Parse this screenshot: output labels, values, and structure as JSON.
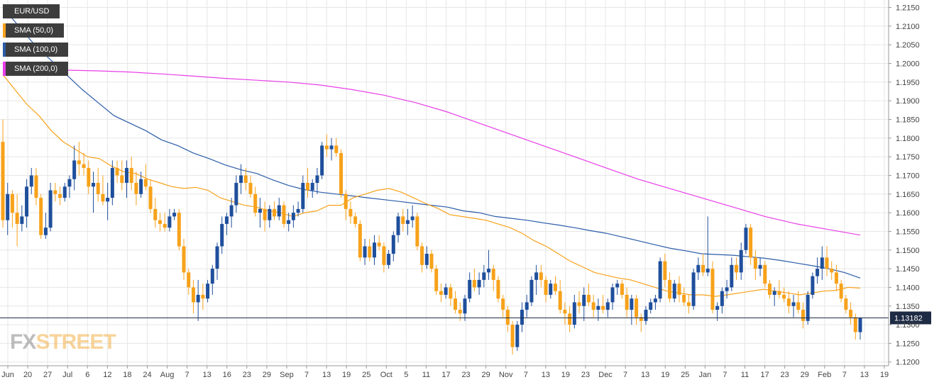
{
  "chart_data": {
    "type": "candlestick",
    "symbol": "EUR/USD",
    "legend": [
      {
        "label": "EUR/USD",
        "color": "#3d3d3d"
      },
      {
        "label": "SMA (50,0)",
        "color": "#f7a21b"
      },
      {
        "label": "SMA (100,0)",
        "color": "#2b5ca8"
      },
      {
        "label": "SMA (200,0)",
        "color": "#e83de8"
      }
    ],
    "ylim": [
      1.119,
      1.217
    ],
    "yticks": [
      "1.2150",
      "1.2100",
      "1.2050",
      "1.2000",
      "1.1950",
      "1.1900",
      "1.1850",
      "1.1800",
      "1.1750",
      "1.1700",
      "1.1650",
      "1.1600",
      "1.1550",
      "1.1500",
      "1.1450",
      "1.1400",
      "1.1350",
      "1.1300",
      "1.1250",
      "1.1200"
    ],
    "xticks": [
      "Jun",
      "20",
      "27",
      "Jul",
      "6",
      "12",
      "18",
      "24",
      "Aug",
      "7",
      "13",
      "16",
      "23",
      "29",
      "Sep",
      "7",
      "13",
      "19",
      "25",
      "Oct",
      "5",
      "11",
      "17",
      "23",
      "29",
      "Nov",
      "7",
      "13",
      "19",
      "23",
      "Dec",
      "7",
      "13",
      "19",
      "25",
      "Jan",
      "7",
      "11",
      "17",
      "23",
      "29",
      "Feb",
      "7",
      "13",
      "19"
    ],
    "current_price": "1.13182",
    "current_value": 1.13182,
    "up_color": "#1f4f9c",
    "down_color": "#f7a21b",
    "candles": [
      [
        1.179,
        1.185,
        1.156,
        1.158
      ],
      [
        1.158,
        1.168,
        1.154,
        1.165
      ],
      [
        1.165,
        1.166,
        1.156,
        1.16
      ],
      [
        1.16,
        1.165,
        1.151,
        1.157
      ],
      [
        1.157,
        1.162,
        1.155,
        1.159
      ],
      [
        1.159,
        1.169,
        1.156,
        1.167
      ],
      [
        1.167,
        1.172,
        1.165,
        1.17
      ],
      [
        1.17,
        1.172,
        1.162,
        1.164
      ],
      [
        1.164,
        1.165,
        1.153,
        1.154
      ],
      [
        1.154,
        1.16,
        1.153,
        1.156
      ],
      [
        1.156,
        1.168,
        1.155,
        1.166
      ],
      [
        1.166,
        1.168,
        1.163,
        1.165
      ],
      [
        1.165,
        1.167,
        1.162,
        1.164
      ],
      [
        1.164,
        1.168,
        1.163,
        1.167
      ],
      [
        1.167,
        1.17,
        1.164,
        1.169
      ],
      [
        1.169,
        1.178,
        1.166,
        1.174
      ],
      [
        1.174,
        1.179,
        1.17,
        1.173
      ],
      [
        1.173,
        1.176,
        1.17,
        1.172
      ],
      [
        1.172,
        1.174,
        1.165,
        1.167
      ],
      [
        1.167,
        1.171,
        1.16,
        1.168
      ],
      [
        1.168,
        1.172,
        1.163,
        1.165
      ],
      [
        1.165,
        1.17,
        1.162,
        1.163
      ],
      [
        1.163,
        1.168,
        1.158,
        1.164
      ],
      [
        1.164,
        1.174,
        1.162,
        1.172
      ],
      [
        1.172,
        1.174,
        1.168,
        1.17
      ],
      [
        1.17,
        1.174,
        1.166,
        1.168
      ],
      [
        1.168,
        1.174,
        1.164,
        1.172
      ],
      [
        1.172,
        1.175,
        1.166,
        1.168
      ],
      [
        1.168,
        1.171,
        1.162,
        1.165
      ],
      [
        1.165,
        1.171,
        1.164,
        1.169
      ],
      [
        1.169,
        1.173,
        1.166,
        1.167
      ],
      [
        1.167,
        1.169,
        1.16,
        1.161
      ],
      [
        1.161,
        1.164,
        1.156,
        1.158
      ],
      [
        1.158,
        1.16,
        1.155,
        1.157
      ],
      [
        1.157,
        1.16,
        1.155,
        1.156
      ],
      [
        1.156,
        1.161,
        1.155,
        1.159
      ],
      [
        1.159,
        1.161,
        1.158,
        1.16
      ],
      [
        1.16,
        1.161,
        1.15,
        1.151
      ],
      [
        1.151,
        1.153,
        1.142,
        1.144
      ],
      [
        1.144,
        1.145,
        1.138,
        1.14
      ],
      [
        1.14,
        1.142,
        1.133,
        1.136
      ],
      [
        1.136,
        1.142,
        1.131,
        1.138
      ],
      [
        1.138,
        1.141,
        1.134,
        1.137
      ],
      [
        1.137,
        1.142,
        1.136,
        1.141
      ],
      [
        1.141,
        1.146,
        1.138,
        1.145
      ],
      [
        1.145,
        1.152,
        1.142,
        1.151
      ],
      [
        1.151,
        1.159,
        1.149,
        1.157
      ],
      [
        1.157,
        1.16,
        1.154,
        1.159
      ],
      [
        1.159,
        1.164,
        1.156,
        1.162
      ],
      [
        1.162,
        1.17,
        1.16,
        1.168
      ],
      [
        1.168,
        1.173,
        1.165,
        1.17
      ],
      [
        1.17,
        1.172,
        1.166,
        1.168
      ],
      [
        1.168,
        1.17,
        1.164,
        1.165
      ],
      [
        1.165,
        1.167,
        1.159,
        1.16
      ],
      [
        1.16,
        1.164,
        1.156,
        1.161
      ],
      [
        1.161,
        1.163,
        1.155,
        1.158
      ],
      [
        1.158,
        1.162,
        1.156,
        1.161
      ],
      [
        1.161,
        1.163,
        1.158,
        1.159
      ],
      [
        1.159,
        1.164,
        1.158,
        1.162
      ],
      [
        1.162,
        1.163,
        1.156,
        1.157
      ],
      [
        1.157,
        1.16,
        1.155,
        1.158
      ],
      [
        1.158,
        1.162,
        1.156,
        1.16
      ],
      [
        1.16,
        1.163,
        1.159,
        1.161
      ],
      [
        1.161,
        1.17,
        1.16,
        1.168
      ],
      [
        1.168,
        1.172,
        1.164,
        1.166
      ],
      [
        1.166,
        1.169,
        1.164,
        1.168
      ],
      [
        1.168,
        1.172,
        1.165,
        1.17
      ],
      [
        1.17,
        1.179,
        1.169,
        1.178
      ],
      [
        1.178,
        1.181,
        1.175,
        1.177
      ],
      [
        1.177,
        1.18,
        1.174,
        1.178
      ],
      [
        1.178,
        1.18,
        1.175,
        1.176
      ],
      [
        1.176,
        1.177,
        1.164,
        1.165
      ],
      [
        1.165,
        1.166,
        1.158,
        1.161
      ],
      [
        1.161,
        1.163,
        1.157,
        1.159
      ],
      [
        1.159,
        1.16,
        1.156,
        1.157
      ],
      [
        1.157,
        1.158,
        1.147,
        1.148
      ],
      [
        1.148,
        1.153,
        1.146,
        1.151
      ],
      [
        1.151,
        1.153,
        1.147,
        1.148
      ],
      [
        1.148,
        1.154,
        1.146,
        1.152
      ],
      [
        1.152,
        1.154,
        1.15,
        1.151
      ],
      [
        1.151,
        1.152,
        1.144,
        1.146
      ],
      [
        1.146,
        1.15,
        1.145,
        1.149
      ],
      [
        1.149,
        1.155,
        1.147,
        1.154
      ],
      [
        1.154,
        1.16,
        1.152,
        1.159
      ],
      [
        1.159,
        1.161,
        1.155,
        1.157
      ],
      [
        1.157,
        1.161,
        1.154,
        1.158
      ],
      [
        1.158,
        1.162,
        1.156,
        1.159
      ],
      [
        1.159,
        1.16,
        1.15,
        1.151
      ],
      [
        1.151,
        1.152,
        1.144,
        1.146
      ],
      [
        1.146,
        1.151,
        1.145,
        1.149
      ],
      [
        1.149,
        1.15,
        1.144,
        1.145
      ],
      [
        1.145,
        1.146,
        1.138,
        1.139
      ],
      [
        1.139,
        1.141,
        1.136,
        1.138
      ],
      [
        1.138,
        1.141,
        1.137,
        1.14
      ],
      [
        1.14,
        1.141,
        1.135,
        1.137
      ],
      [
        1.137,
        1.139,
        1.133,
        1.134
      ],
      [
        1.134,
        1.136,
        1.131,
        1.133
      ],
      [
        1.133,
        1.138,
        1.131,
        1.137
      ],
      [
        1.137,
        1.144,
        1.136,
        1.142
      ],
      [
        1.142,
        1.145,
        1.139,
        1.14
      ],
      [
        1.14,
        1.144,
        1.138,
        1.142
      ],
      [
        1.142,
        1.146,
        1.14,
        1.144
      ],
      [
        1.144,
        1.15,
        1.142,
        1.145
      ],
      [
        1.145,
        1.146,
        1.139,
        1.142
      ],
      [
        1.142,
        1.143,
        1.136,
        1.137
      ],
      [
        1.137,
        1.138,
        1.132,
        1.134
      ],
      [
        1.134,
        1.135,
        1.128,
        1.13
      ],
      [
        1.13,
        1.131,
        1.122,
        1.124
      ],
      [
        1.124,
        1.131,
        1.123,
        1.13
      ],
      [
        1.13,
        1.136,
        1.128,
        1.134
      ],
      [
        1.134,
        1.138,
        1.132,
        1.136
      ],
      [
        1.136,
        1.143,
        1.135,
        1.142
      ],
      [
        1.142,
        1.146,
        1.138,
        1.144
      ],
      [
        1.144,
        1.146,
        1.14,
        1.142
      ],
      [
        1.142,
        1.143,
        1.136,
        1.138
      ],
      [
        1.138,
        1.142,
        1.137,
        1.141
      ],
      [
        1.141,
        1.143,
        1.138,
        1.139
      ],
      [
        1.139,
        1.142,
        1.133,
        1.134
      ],
      [
        1.134,
        1.136,
        1.13,
        1.133
      ],
      [
        1.133,
        1.135,
        1.128,
        1.13
      ],
      [
        1.13,
        1.138,
        1.129,
        1.136
      ],
      [
        1.136,
        1.139,
        1.133,
        1.135
      ],
      [
        1.135,
        1.14,
        1.131,
        1.138
      ],
      [
        1.138,
        1.141,
        1.135,
        1.136
      ],
      [
        1.136,
        1.138,
        1.132,
        1.134
      ],
      [
        1.134,
        1.137,
        1.131,
        1.135
      ],
      [
        1.135,
        1.138,
        1.133,
        1.134
      ],
      [
        1.134,
        1.137,
        1.132,
        1.136
      ],
      [
        1.136,
        1.141,
        1.134,
        1.14
      ],
      [
        1.14,
        1.142,
        1.138,
        1.141
      ],
      [
        1.141,
        1.142,
        1.137,
        1.138
      ],
      [
        1.138,
        1.14,
        1.132,
        1.134
      ],
      [
        1.134,
        1.138,
        1.13,
        1.137
      ],
      [
        1.137,
        1.138,
        1.13,
        1.132
      ],
      [
        1.132,
        1.133,
        1.128,
        1.131
      ],
      [
        1.131,
        1.135,
        1.13,
        1.134
      ],
      [
        1.134,
        1.137,
        1.133,
        1.136
      ],
      [
        1.136,
        1.138,
        1.134,
        1.137
      ],
      [
        1.137,
        1.148,
        1.136,
        1.147
      ],
      [
        1.147,
        1.149,
        1.14,
        1.142
      ],
      [
        1.142,
        1.144,
        1.136,
        1.137
      ],
      [
        1.137,
        1.142,
        1.136,
        1.141
      ],
      [
        1.141,
        1.143,
        1.136,
        1.138
      ],
      [
        1.138,
        1.14,
        1.135,
        1.136
      ],
      [
        1.136,
        1.138,
        1.133,
        1.135
      ],
      [
        1.135,
        1.145,
        1.134,
        1.144
      ],
      [
        1.144,
        1.148,
        1.142,
        1.146
      ],
      [
        1.146,
        1.149,
        1.143,
        1.144
      ],
      [
        1.144,
        1.159,
        1.143,
        1.145
      ],
      [
        1.145,
        1.147,
        1.133,
        1.134
      ],
      [
        1.134,
        1.136,
        1.131,
        1.135
      ],
      [
        1.135,
        1.14,
        1.133,
        1.139
      ],
      [
        1.139,
        1.142,
        1.137,
        1.14
      ],
      [
        1.14,
        1.148,
        1.139,
        1.146
      ],
      [
        1.146,
        1.148,
        1.142,
        1.144
      ],
      [
        1.144,
        1.152,
        1.142,
        1.15
      ],
      [
        1.15,
        1.157,
        1.149,
        1.156
      ],
      [
        1.156,
        1.157,
        1.146,
        1.148
      ],
      [
        1.148,
        1.15,
        1.142,
        1.145
      ],
      [
        1.145,
        1.148,
        1.143,
        1.146
      ],
      [
        1.146,
        1.147,
        1.14,
        1.141
      ],
      [
        1.141,
        1.142,
        1.137,
        1.138
      ],
      [
        1.138,
        1.14,
        1.135,
        1.139
      ],
      [
        1.139,
        1.142,
        1.137,
        1.138
      ],
      [
        1.138,
        1.14,
        1.136,
        1.137
      ],
      [
        1.137,
        1.139,
        1.133,
        1.135
      ],
      [
        1.135,
        1.138,
        1.132,
        1.136
      ],
      [
        1.136,
        1.139,
        1.133,
        1.134
      ],
      [
        1.134,
        1.136,
        1.129,
        1.131
      ],
      [
        1.131,
        1.139,
        1.13,
        1.138
      ],
      [
        1.138,
        1.144,
        1.137,
        1.143
      ],
      [
        1.143,
        1.148,
        1.141,
        1.145
      ],
      [
        1.145,
        1.151,
        1.142,
        1.148
      ],
      [
        1.148,
        1.151,
        1.143,
        1.145
      ],
      [
        1.145,
        1.147,
        1.142,
        1.144
      ],
      [
        1.144,
        1.146,
        1.139,
        1.141
      ],
      [
        1.141,
        1.142,
        1.136,
        1.137
      ],
      [
        1.137,
        1.138,
        1.133,
        1.134
      ],
      [
        1.134,
        1.136,
        1.13,
        1.132
      ],
      [
        1.132,
        1.133,
        1.126,
        1.128
      ],
      [
        1.128,
        1.132,
        1.126,
        1.1318
      ]
    ],
    "sma50": [
      1.197,
      1.193,
      1.189,
      1.186,
      1.182,
      1.179,
      1.177,
      1.175,
      1.1745,
      1.1725,
      1.171,
      1.1705,
      1.169,
      1.168,
      1.167,
      1.1665,
      1.1668,
      1.166,
      1.164,
      1.163,
      1.162,
      1.1615,
      1.1605,
      1.16,
      1.159,
      1.16,
      1.1605,
      1.162,
      1.162,
      1.164,
      1.165,
      1.166,
      1.1665,
      1.1655,
      1.164,
      1.1625,
      1.1612,
      1.1595,
      1.159,
      1.1585,
      1.158,
      1.157,
      1.156,
      1.1545,
      1.1525,
      1.151,
      1.149,
      1.147,
      1.1455,
      1.144,
      1.1432,
      1.1425,
      1.142,
      1.141,
      1.14,
      1.139,
      1.1385,
      1.138,
      1.138,
      1.1376,
      1.138,
      1.1385,
      1.139,
      1.1395,
      1.139,
      1.1385,
      1.138,
      1.1385,
      1.139,
      1.1392,
      1.14,
      1.1398
    ],
    "sma100": [
      1.215,
      1.21,
      1.205,
      1.201,
      1.197,
      1.193,
      1.1895,
      1.186,
      1.184,
      1.182,
      1.1795,
      1.178,
      1.176,
      1.1745,
      1.1728,
      1.1715,
      1.1705,
      1.1688,
      1.1673,
      1.1662,
      1.1655,
      1.165,
      1.1645,
      1.164,
      1.1635,
      1.163,
      1.1625,
      1.162,
      1.1615,
      1.1605,
      1.16,
      1.159,
      1.1585,
      1.158,
      1.1573,
      1.1567,
      1.156,
      1.1552,
      1.1545,
      1.1535,
      1.1525,
      1.1515,
      1.1505,
      1.1498,
      1.149,
      1.1488,
      1.1486,
      1.1482,
      1.1478,
      1.1472,
      1.1465,
      1.1458,
      1.145,
      1.144,
      1.1425
    ],
    "sma200": [
      1.199,
      1.1985,
      1.1982,
      1.198,
      1.1977,
      1.1972,
      1.1966,
      1.196,
      1.1955,
      1.195,
      1.1942,
      1.193,
      1.1915,
      1.1895,
      1.187,
      1.184,
      1.181,
      1.178,
      1.175,
      1.172,
      1.169,
      1.1665,
      1.164,
      1.1615,
      1.159,
      1.157,
      1.1555,
      1.154
    ],
    "xlabel": "",
    "ylabel": "",
    "grid": true,
    "legend_placement": "top-left",
    "brand": {
      "fx": "FX",
      "street": "STREET"
    }
  }
}
